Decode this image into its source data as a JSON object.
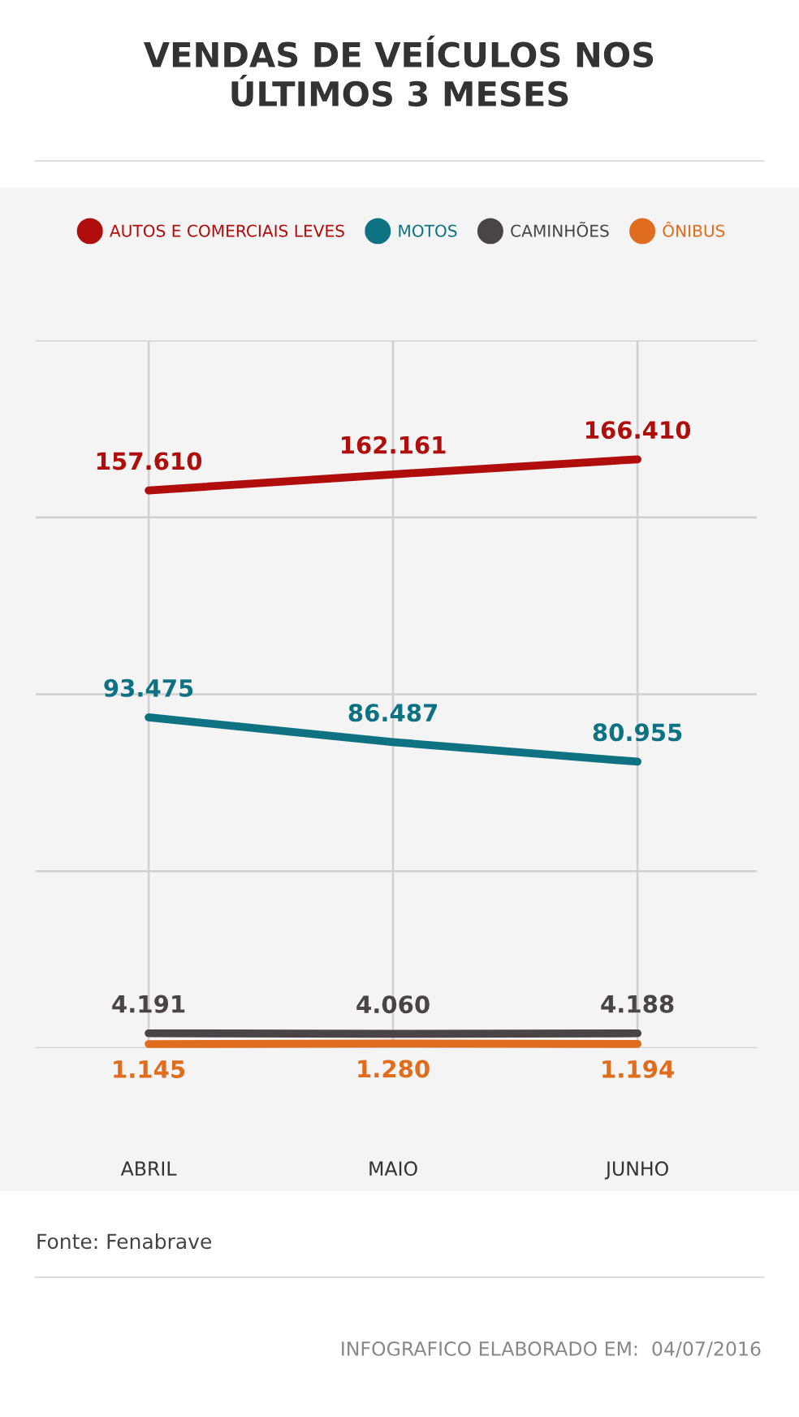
{
  "chart_data": {
    "type": "line",
    "title": "VENDAS DE VEÍCULOS NOS\nÚLTIMOS 3 MESES",
    "categories": [
      "ABRIL",
      "MAIO",
      "JUNHO"
    ],
    "series": [
      {
        "name": "AUTOS E COMERCIAIS LEVES",
        "color": "#b00d0d",
        "values": [
          157610,
          162161,
          166410
        ],
        "value_labels": [
          "157.610",
          "162.161",
          "166.410"
        ]
      },
      {
        "name": "MOTOS",
        "color": "#0e7282",
        "values": [
          93475,
          86487,
          80955
        ],
        "value_labels": [
          "93.475",
          "86.487",
          "80.955"
        ]
      },
      {
        "name": "CAMINHÕES",
        "color": "#4a4448",
        "values": [
          4191,
          4060,
          4188
        ],
        "value_labels": [
          "4.191",
          "4.060",
          "4.188"
        ]
      },
      {
        "name": "ÔNIBUS",
        "color": "#e06d1e",
        "values": [
          1145,
          1280,
          1194
        ],
        "value_labels": [
          "1.145",
          "1.280",
          "1.194"
        ]
      }
    ],
    "ylim": [
      0,
      200000
    ],
    "yticks": [
      {
        "value": 0,
        "label": null
      },
      {
        "value": 50000,
        "label": null
      },
      {
        "value": 100000,
        "label": null
      },
      {
        "value": 150000,
        "label": null
      },
      {
        "value": 200000,
        "label": null
      }
    ],
    "tick_labels": "x",
    "grid": true,
    "legend": "top",
    "marker": "none",
    "line_style": "solid",
    "annotations": [
      "Fonte: Fenabrave",
      "INFOGRAFICO ELABORADO EM:  04/07/2016"
    ]
  }
}
